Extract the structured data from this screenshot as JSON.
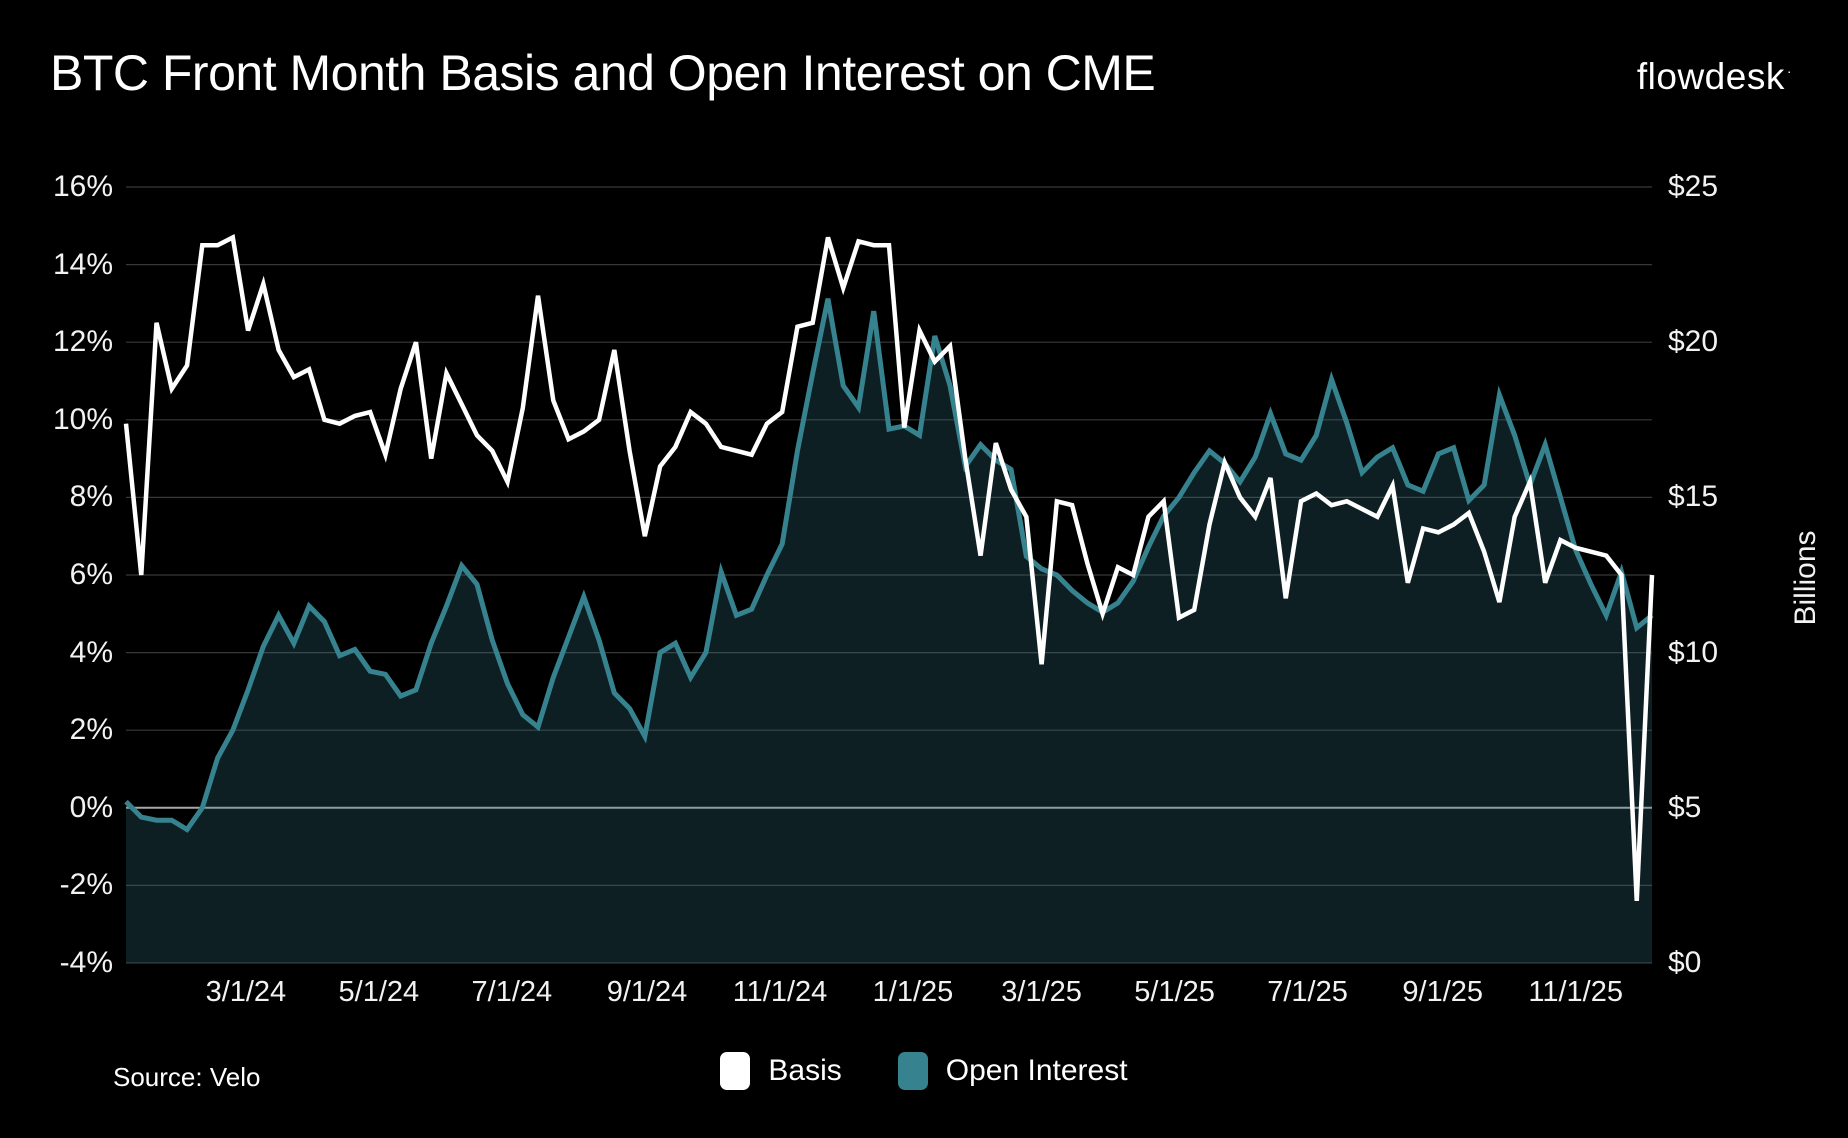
{
  "title": "BTC Front Month Basis and Open Interest on CME",
  "logo": {
    "text": "flowdesk",
    "mark": "·"
  },
  "source": "Source: Velo",
  "legend": [
    {
      "label": "Basis",
      "color": "#ffffff"
    },
    {
      "label": "Open Interest",
      "color": "#36838f"
    }
  ],
  "chart_data": {
    "type": "line+area",
    "frequency": "weekly",
    "x_start_date": "1/6/24",
    "x_tick_labels": [
      "3/1/24",
      "5/1/24",
      "7/1/24",
      "9/1/24",
      "11/1/24",
      "1/1/25",
      "3/1/25",
      "5/1/25",
      "7/1/25",
      "9/1/25",
      "11/1/25"
    ],
    "left_axis": {
      "unit": "percent",
      "min": -4,
      "max": 16,
      "tick_step": 2,
      "labels": [
        "16%",
        "14%",
        "12%",
        "10%",
        "8%",
        "6%",
        "4%",
        "2%",
        "0%",
        "-2%",
        "-4%"
      ]
    },
    "right_axis": {
      "unit": "billions_usd",
      "min": 0,
      "max": 25,
      "tick_step": 5,
      "labels": [
        "$25",
        "$20",
        "$15",
        "$10",
        "$5",
        "$0"
      ],
      "title": "Billions"
    },
    "grid": {
      "color": "#383838",
      "zero_line_color": "#a8a8a8"
    },
    "series": [
      {
        "name": "Basis",
        "axis": "left",
        "style": "line",
        "color": "#ffffff",
        "values": [
          9.9,
          6.0,
          12.5,
          10.8,
          11.4,
          14.5,
          14.5,
          14.7,
          12.3,
          13.5,
          11.8,
          11.1,
          11.3,
          10.0,
          9.9,
          10.1,
          10.2,
          9.1,
          10.8,
          12.0,
          9.0,
          11.2,
          10.4,
          9.6,
          9.2,
          8.4,
          10.3,
          13.2,
          10.5,
          9.5,
          9.7,
          10.0,
          11.8,
          9.2,
          7.0,
          8.8,
          9.3,
          10.2,
          9.9,
          9.3,
          9.2,
          9.1,
          9.9,
          10.2,
          12.4,
          12.5,
          14.7,
          13.4,
          14.6,
          14.5,
          14.5,
          9.8,
          12.3,
          11.5,
          11.9,
          9.0,
          6.5,
          9.4,
          8.2,
          7.5,
          3.7,
          7.9,
          7.8,
          6.3,
          5.0,
          6.2,
          6.0,
          7.5,
          7.9,
          4.9,
          5.1,
          7.3,
          8.9,
          8.0,
          7.5,
          8.5,
          5.4,
          7.9,
          8.1,
          7.8,
          7.9,
          7.7,
          7.5,
          8.3,
          5.8,
          7.2,
          7.1,
          7.3,
          7.6,
          6.6,
          5.3,
          7.5,
          8.4,
          5.8,
          6.9,
          6.7,
          6.6,
          6.5,
          6.0,
          -2.4,
          6.0
        ]
      },
      {
        "name": "Open Interest",
        "axis": "right",
        "style": "area",
        "color": "#36838f",
        "fill": "rgba(54,131,143,0.24)",
        "values": [
          5.2,
          4.7,
          4.6,
          4.6,
          4.3,
          5.0,
          6.6,
          7.5,
          8.8,
          10.2,
          11.2,
          10.3,
          11.5,
          11.0,
          9.9,
          10.1,
          9.4,
          9.3,
          8.6,
          8.8,
          10.3,
          11.5,
          12.8,
          12.2,
          10.4,
          9.0,
          8.0,
          7.6,
          9.2,
          10.5,
          11.8,
          10.4,
          8.7,
          8.2,
          7.3,
          10.0,
          10.3,
          9.2,
          10.0,
          12.6,
          11.2,
          11.4,
          12.5,
          13.5,
          16.5,
          19.0,
          21.4,
          18.6,
          17.9,
          21.0,
          17.2,
          17.3,
          17.0,
          20.2,
          18.6,
          16.0,
          16.7,
          16.2,
          15.9,
          13.1,
          12.7,
          12.5,
          12.0,
          11.6,
          11.3,
          11.6,
          12.3,
          13.4,
          14.4,
          15.0,
          15.8,
          16.5,
          16.1,
          15.5,
          16.3,
          17.7,
          16.4,
          16.2,
          17.0,
          18.8,
          17.4,
          15.8,
          16.3,
          16.6,
          15.4,
          15.2,
          16.4,
          16.6,
          14.9,
          15.4,
          18.3,
          17.0,
          15.4,
          16.7,
          15.0,
          13.3,
          12.2,
          11.2,
          12.6,
          10.8,
          11.2
        ]
      }
    ]
  }
}
